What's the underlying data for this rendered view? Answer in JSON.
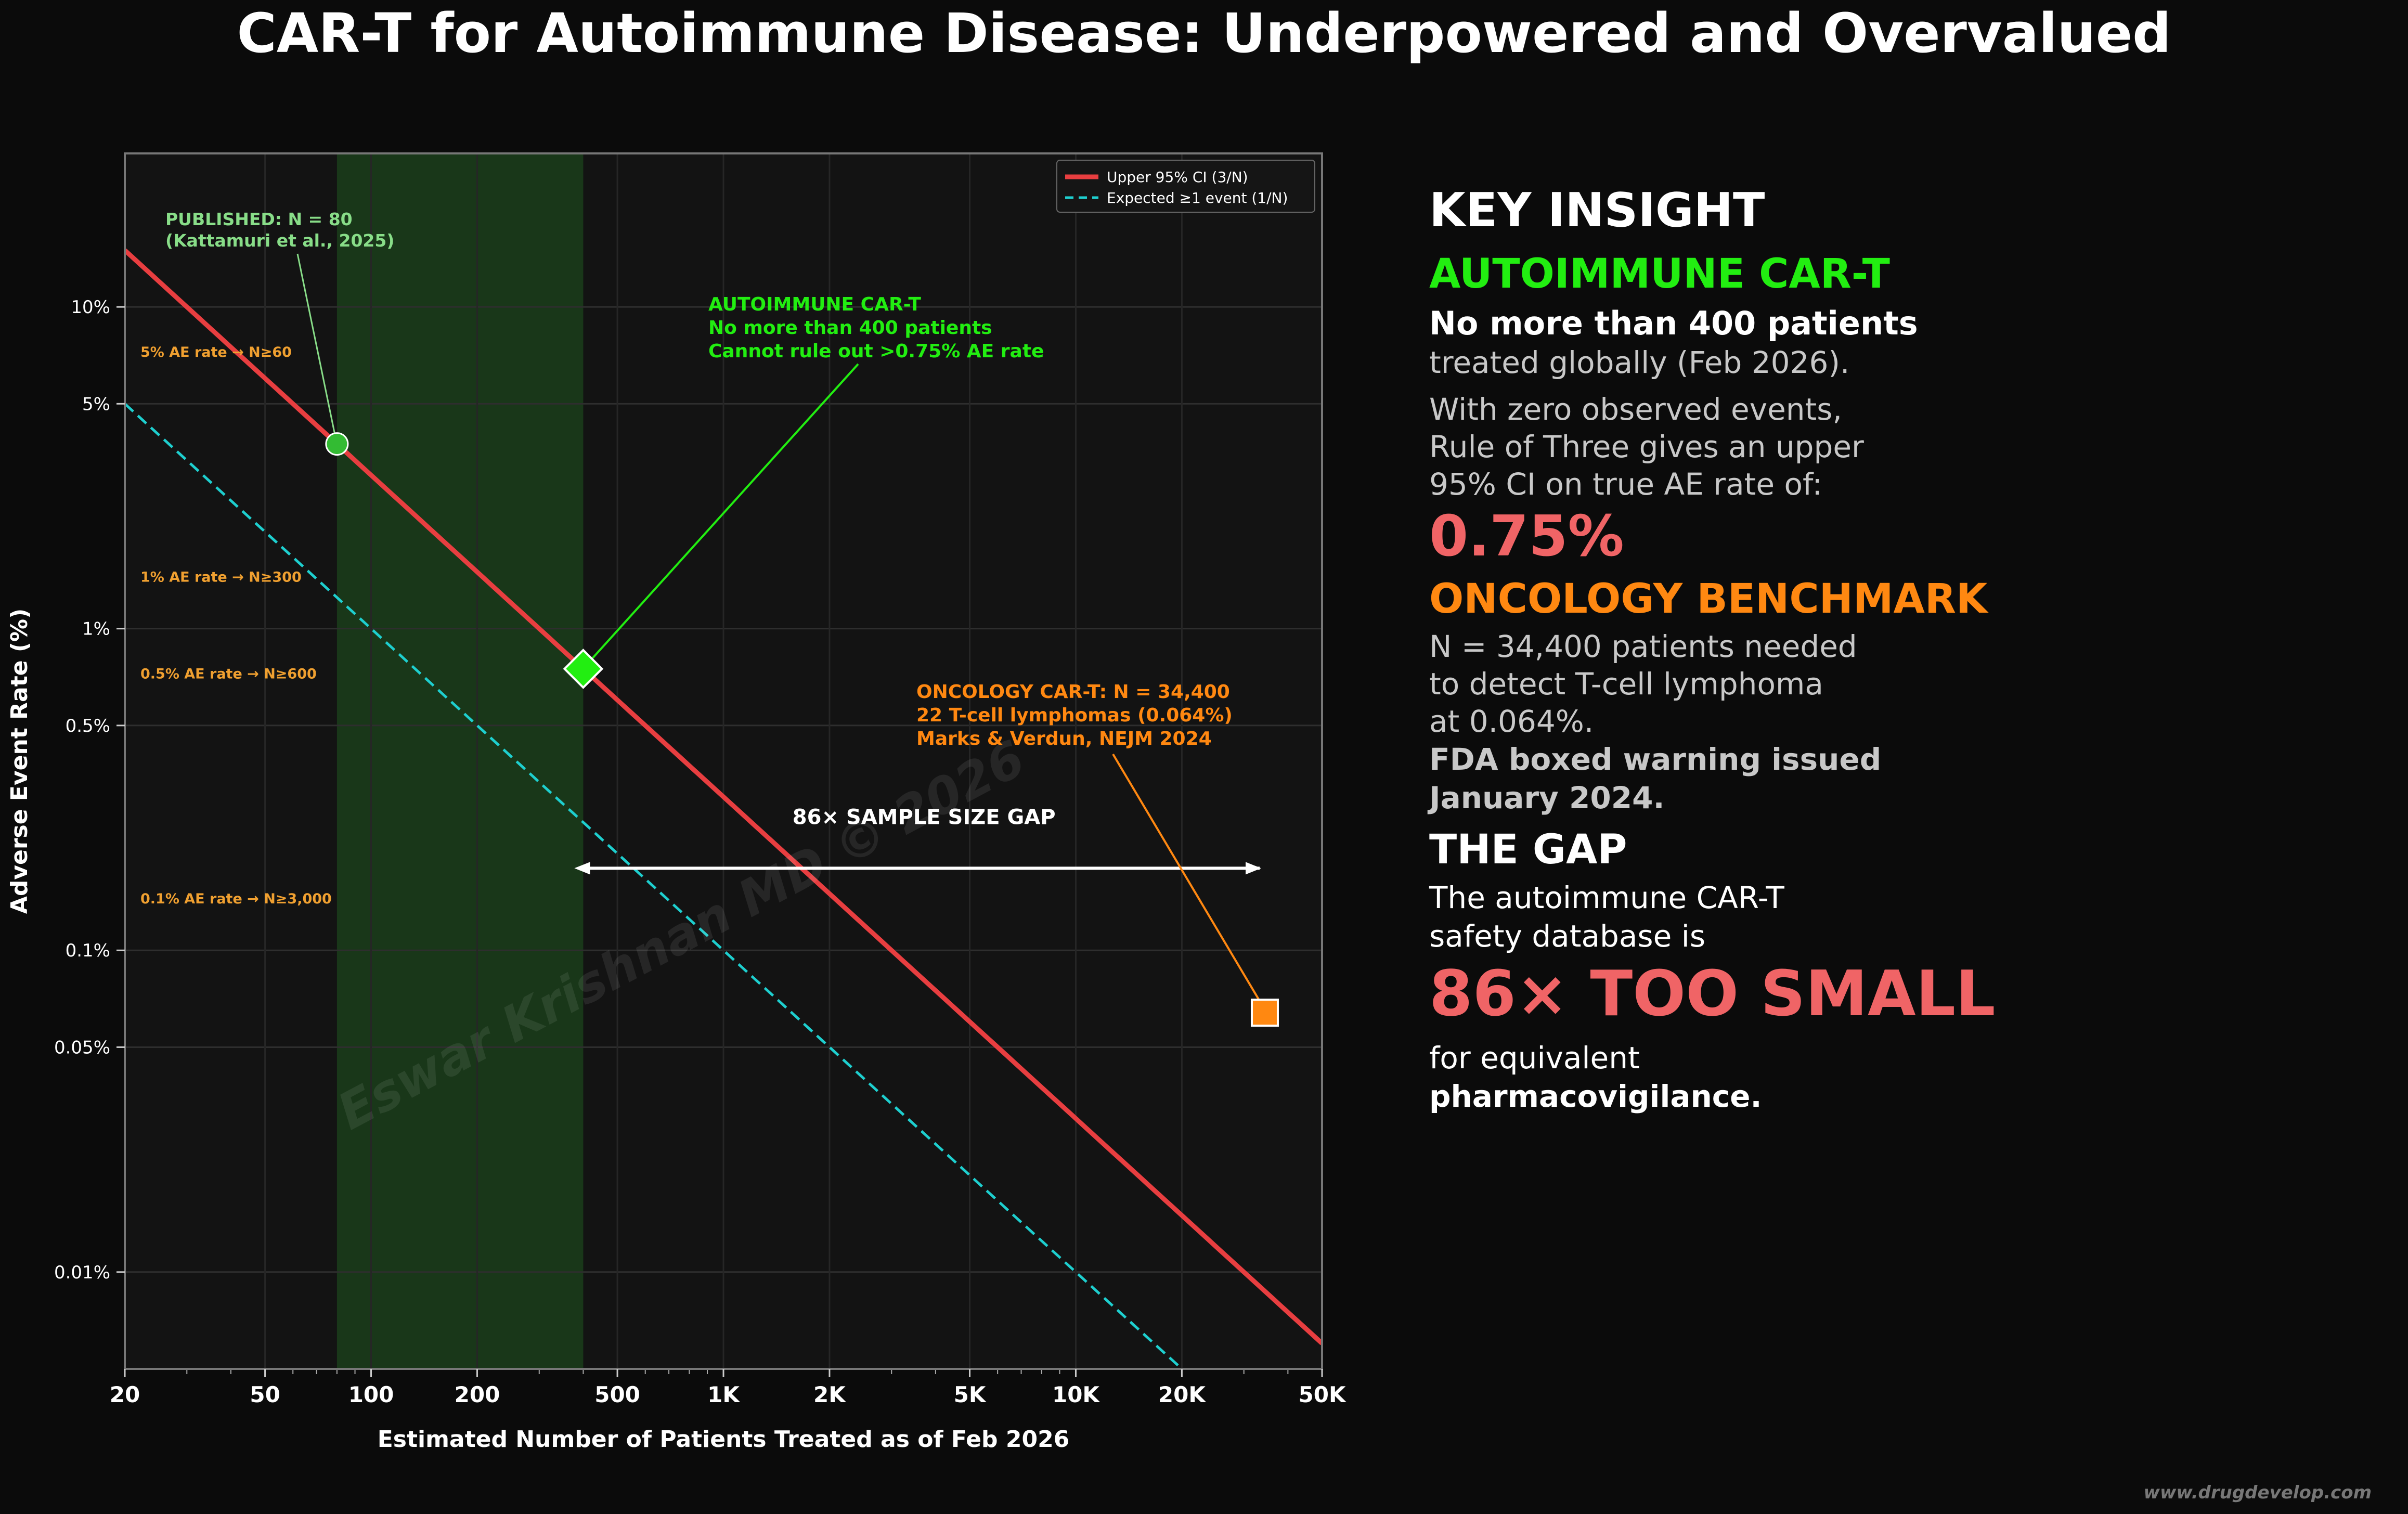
{
  "title": "CAR-T for Autoimmune Disease: Underpowered and Overvalued",
  "colors": {
    "background": "#0b0b0b",
    "plot_bg": "#131313",
    "upper_ci": "#e83e40",
    "expected": "#1ecfcf",
    "band": "#1b3e1b",
    "green": "#22ee11",
    "orange": "#ff8811",
    "light_green": "#88dd88",
    "red_text": "#f06466"
  },
  "chart_data": {
    "type": "line",
    "scale": {
      "x": "log",
      "y": "log"
    },
    "xlim": [
      20,
      50000
    ],
    "ylim": [
      0.005,
      30
    ],
    "xlabel": "Estimated Number of Patients Treated as of Feb 2026",
    "ylabel": "Adverse Event Rate (%)",
    "xticks": [
      {
        "value": 20,
        "label": "20"
      },
      {
        "value": 50,
        "label": "50"
      },
      {
        "value": 100,
        "label": "100"
      },
      {
        "value": 200,
        "label": "200"
      },
      {
        "value": 500,
        "label": "500"
      },
      {
        "value": 1000,
        "label": "1K"
      },
      {
        "value": 2000,
        "label": "2K"
      },
      {
        "value": 5000,
        "label": "5K"
      },
      {
        "value": 10000,
        "label": "10K"
      },
      {
        "value": 20000,
        "label": "20K"
      },
      {
        "value": 50000,
        "label": "50K"
      }
    ],
    "yticks": [
      {
        "value": 0.01,
        "label": "0.01%"
      },
      {
        "value": 0.05,
        "label": "0.05%"
      },
      {
        "value": 0.1,
        "label": "0.1%"
      },
      {
        "value": 0.5,
        "label": "0.5%"
      },
      {
        "value": 1,
        "label": "1%"
      },
      {
        "value": 5,
        "label": "5%"
      },
      {
        "value": 10,
        "label": "10%"
      }
    ],
    "series": [
      {
        "name": "Upper 95% CI (3/N)",
        "formula": "300/N",
        "style": "solid"
      },
      {
        "name": "Expected ≥1 event (1/N)",
        "formula": "100/N",
        "style": "dashed"
      }
    ],
    "shaded_band": {
      "x_from": 80,
      "x_to": 400
    },
    "points": [
      {
        "name": "published",
        "x": 80,
        "y": 3.75,
        "marker": "circle",
        "label_line1": "PUBLISHED: N = 80",
        "label_line2": "(Kattamuri et al., 2025)"
      },
      {
        "name": "autoimmune",
        "x": 400,
        "y": 0.75,
        "marker": "diamond",
        "label_line1": "AUTOIMMUNE CAR-T",
        "label_line2": "No more than 400 patients",
        "label_line3": "Cannot rule out >0.75% AE rate"
      },
      {
        "name": "oncology",
        "x": 34400,
        "y": 0.064,
        "marker": "square",
        "label_line1": "ONCOLOGY CAR-T: N = 34,400",
        "label_line2": "22 T-cell lymphomas (0.064%)",
        "label_line3": "Marks & Verdun, NEJM 2024"
      }
    ],
    "threshold_labels": [
      {
        "y": 7.0,
        "text": "5% AE rate → N≥60"
      },
      {
        "y": 1.4,
        "text": "1% AE rate → N≥300"
      },
      {
        "y": 0.7,
        "text": "0.5% AE rate → N≥600"
      },
      {
        "y": 0.14,
        "text": "0.1% AE rate → N≥3,000"
      }
    ],
    "gap_arrow": {
      "x_from": 400,
      "x_to": 34400,
      "y": 0.18,
      "label": "86× SAMPLE SIZE GAP"
    },
    "legend": {
      "position": "top-right",
      "items": [
        "Upper 95% CI (3/N)",
        "Expected ≥1 event (1/N)"
      ]
    },
    "watermark": "Eswar Krishnan MD © 2026"
  },
  "panel": {
    "key_insight": "KEY INSIGHT",
    "autoimmune_header": "AUTOIMMUNE CAR-T",
    "autoimmune_bold": "No more than 400 patients",
    "autoimmune_line": "treated globally (Feb 2026).",
    "rule_lines": [
      "With zero observed events,",
      "Rule of Three gives an upper",
      "95% CI on true AE rate of:"
    ],
    "ci_value": "0.75%",
    "oncology_header": "ONCOLOGY BENCHMARK",
    "oncology_lines": [
      "N = 34,400 patients needed",
      "to detect T-cell lymphoma",
      "at 0.064%."
    ],
    "fda_lines": [
      "FDA boxed warning issued",
      "January 2024."
    ],
    "gap_header": "THE GAP",
    "gap_lines": [
      "The autoimmune CAR-T",
      "safety database is"
    ],
    "gap_big": "86× TOO SMALL",
    "equiv_line": "for equivalent",
    "pharma_line": "pharmacovigilance."
  },
  "footer": "www.drugdevelop.com"
}
